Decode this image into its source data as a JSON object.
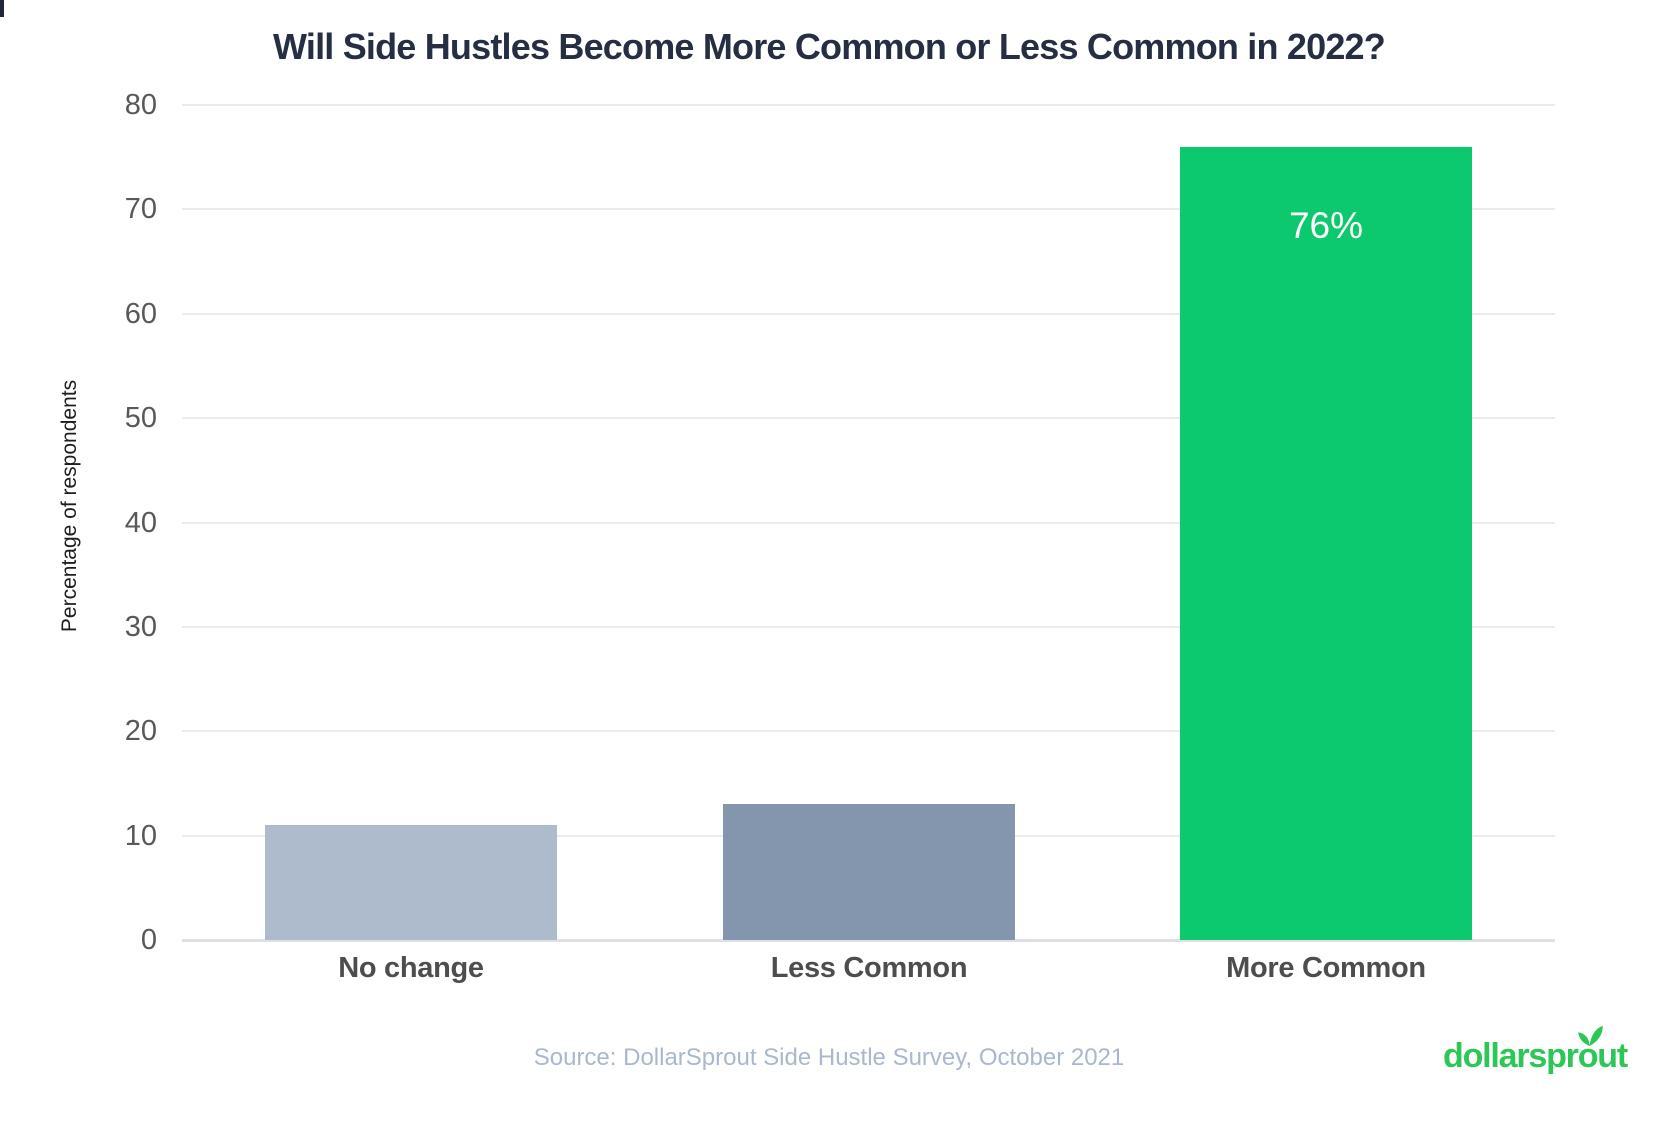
{
  "chart_data": {
    "type": "bar",
    "title": "Will Side Hustles Become More Common or Less Common in 2022?",
    "categories": [
      "No change",
      "Less Common",
      "More Common"
    ],
    "values": [
      11,
      13,
      76
    ],
    "data_labels": [
      "",
      "",
      "76%"
    ],
    "bar_colors": [
      "#aebbcd",
      "#8496ae",
      "#0dc96e"
    ],
    "xlabel": "",
    "ylabel": "Percentage of respondents",
    "ylim": [
      0,
      80
    ],
    "yticks": [
      0,
      10,
      20,
      30,
      40,
      50,
      60,
      70,
      80
    ],
    "grid": true,
    "legend": false
  },
  "source": {
    "text": "Source: DollarSprout Side Hustle Survey, October 2021"
  },
  "logo": {
    "text": "dollarsprout",
    "part1": "dollarspr",
    "part2": "o",
    "part3": "ut"
  },
  "colors": {
    "accent_green": "#0dc96e",
    "logo_green": "#2cc756",
    "title_text": "#262e44",
    "tick_text": "#58585a",
    "category_text": "#4d4d4f",
    "source_text": "#a9b8cd",
    "gridline": "#ebebeb"
  }
}
